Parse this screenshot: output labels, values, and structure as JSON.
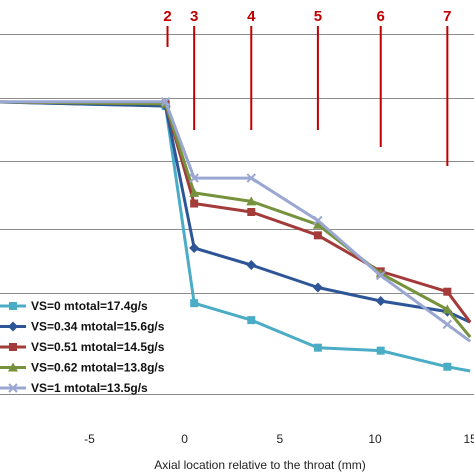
{
  "chart_data": {
    "type": "line",
    "xlabel": "Axial location relative to the throat (mm)",
    "ylabel": "",
    "title": "",
    "xlim": [
      -10,
      15
    ],
    "ylim": [
      0,
      1
    ],
    "x_ticks": [
      -5,
      0,
      5,
      10,
      15
    ],
    "grid": "horizontal",
    "legend_position": "bottom-left",
    "locations": [
      {
        "label": "2",
        "x": -0.9
      },
      {
        "label": "3",
        "x": 0.5
      },
      {
        "label": "4",
        "x": 3.5
      },
      {
        "label": "5",
        "x": 7.0
      },
      {
        "label": "6",
        "x": 10.3
      },
      {
        "label": "7",
        "x": 13.8
      }
    ],
    "series": [
      {
        "name": "VS=0 mtotal=17.4g/s",
        "color": "#4bacc6",
        "marker": "square",
        "x": [
          -10,
          -1,
          0.5,
          3.5,
          7,
          10.3,
          13.8,
          15
        ],
        "y": [
          0.76,
          0.75,
          0.285,
          0.245,
          0.18,
          0.173,
          0.135,
          0.125
        ]
      },
      {
        "name": "VS=0.34 mtotal=15.6g/s",
        "color": "#2e5597",
        "marker": "diamond",
        "x": [
          -10,
          -1,
          0.5,
          3.5,
          7,
          10.3,
          13.8,
          15
        ],
        "y": [
          0.76,
          0.75,
          0.415,
          0.375,
          0.322,
          0.29,
          0.265,
          0.24
        ]
      },
      {
        "name": "VS=0.51 mtotal=14.5g/s",
        "color": "#a23b3a",
        "marker": "square",
        "x": [
          -10,
          -1,
          0.5,
          3.5,
          7,
          10.3,
          13.8,
          15
        ],
        "y": [
          0.76,
          0.755,
          0.52,
          0.5,
          0.445,
          0.36,
          0.312,
          0.24
        ]
      },
      {
        "name": "VS=0.62 mtotal=13.8g/s",
        "color": "#76923c",
        "marker": "triangle",
        "x": [
          -10,
          -1,
          0.5,
          3.5,
          7,
          10.3,
          13.8,
          15
        ],
        "y": [
          0.76,
          0.755,
          0.545,
          0.525,
          0.47,
          0.355,
          0.27,
          0.205
        ]
      },
      {
        "name": "VS=1 mtotal=13.5g/s",
        "color": "#9aa7d2",
        "marker": "x",
        "x": [
          -10,
          -1,
          0.5,
          3.5,
          7,
          10.3,
          13.8,
          15
        ],
        "y": [
          0.76,
          0.76,
          0.58,
          0.58,
          0.48,
          0.35,
          0.235,
          0.195
        ]
      }
    ]
  }
}
